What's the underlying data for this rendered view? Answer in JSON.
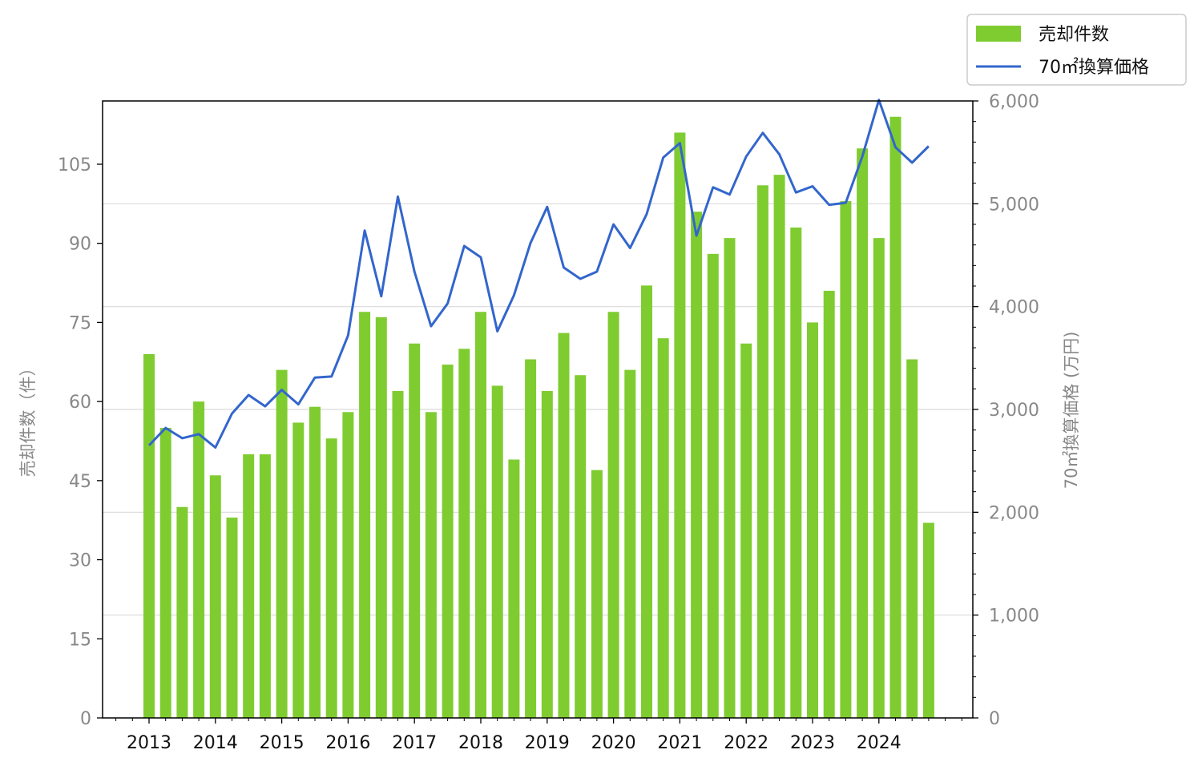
{
  "chart_data": {
    "type": "bar",
    "x_ticks": [
      "2013",
      "2014",
      "2015",
      "2016",
      "2017",
      "2018",
      "2019",
      "2020",
      "2021",
      "2022",
      "2023",
      "2024"
    ],
    "periods_per_year": 4,
    "y_left": {
      "label": "売却件数（件）",
      "ticks": [
        "0",
        "15",
        "30",
        "45",
        "60",
        "75",
        "90",
        "105"
      ],
      "ylim": [
        0,
        117
      ]
    },
    "y_right": {
      "label": "70㎡換算価格 (万円)",
      "ticks": [
        "0",
        "1,000",
        "2,000",
        "3,000",
        "4,000",
        "5,000",
        "6,000"
      ],
      "ylim": [
        0,
        6000
      ]
    },
    "grid": "right-axis major ticks",
    "legend_position": "top-right, outside plot",
    "series": [
      {
        "name": "売却件数",
        "type": "bar",
        "axis": "left",
        "color": "#7fcc31",
        "values": [
          69,
          55,
          40,
          60,
          46,
          38,
          50,
          50,
          66,
          56,
          59,
          53,
          58,
          77,
          76,
          62,
          71,
          58,
          67,
          70,
          77,
          63,
          49,
          68,
          62,
          73,
          65,
          47,
          77,
          66,
          82,
          72,
          111,
          96,
          88,
          91,
          71,
          101,
          103,
          93,
          75,
          81,
          98,
          108,
          91,
          114,
          68,
          37
        ]
      },
      {
        "name": "70㎡換算価格",
        "type": "line",
        "axis": "right",
        "color": "#3366cc",
        "values": [
          2650,
          2820,
          2720,
          2760,
          2630,
          2960,
          3140,
          3030,
          3190,
          3050,
          3310,
          3320,
          3720,
          4740,
          4100,
          5070,
          4340,
          3810,
          4030,
          4590,
          4480,
          3760,
          4110,
          4620,
          4970,
          4380,
          4270,
          4340,
          4800,
          4570,
          4900,
          5450,
          5590,
          4690,
          5160,
          5090,
          5460,
          5690,
          5480,
          5110,
          5170,
          4990,
          5010,
          5460,
          6010,
          5550,
          5400,
          5560
        ]
      }
    ]
  }
}
